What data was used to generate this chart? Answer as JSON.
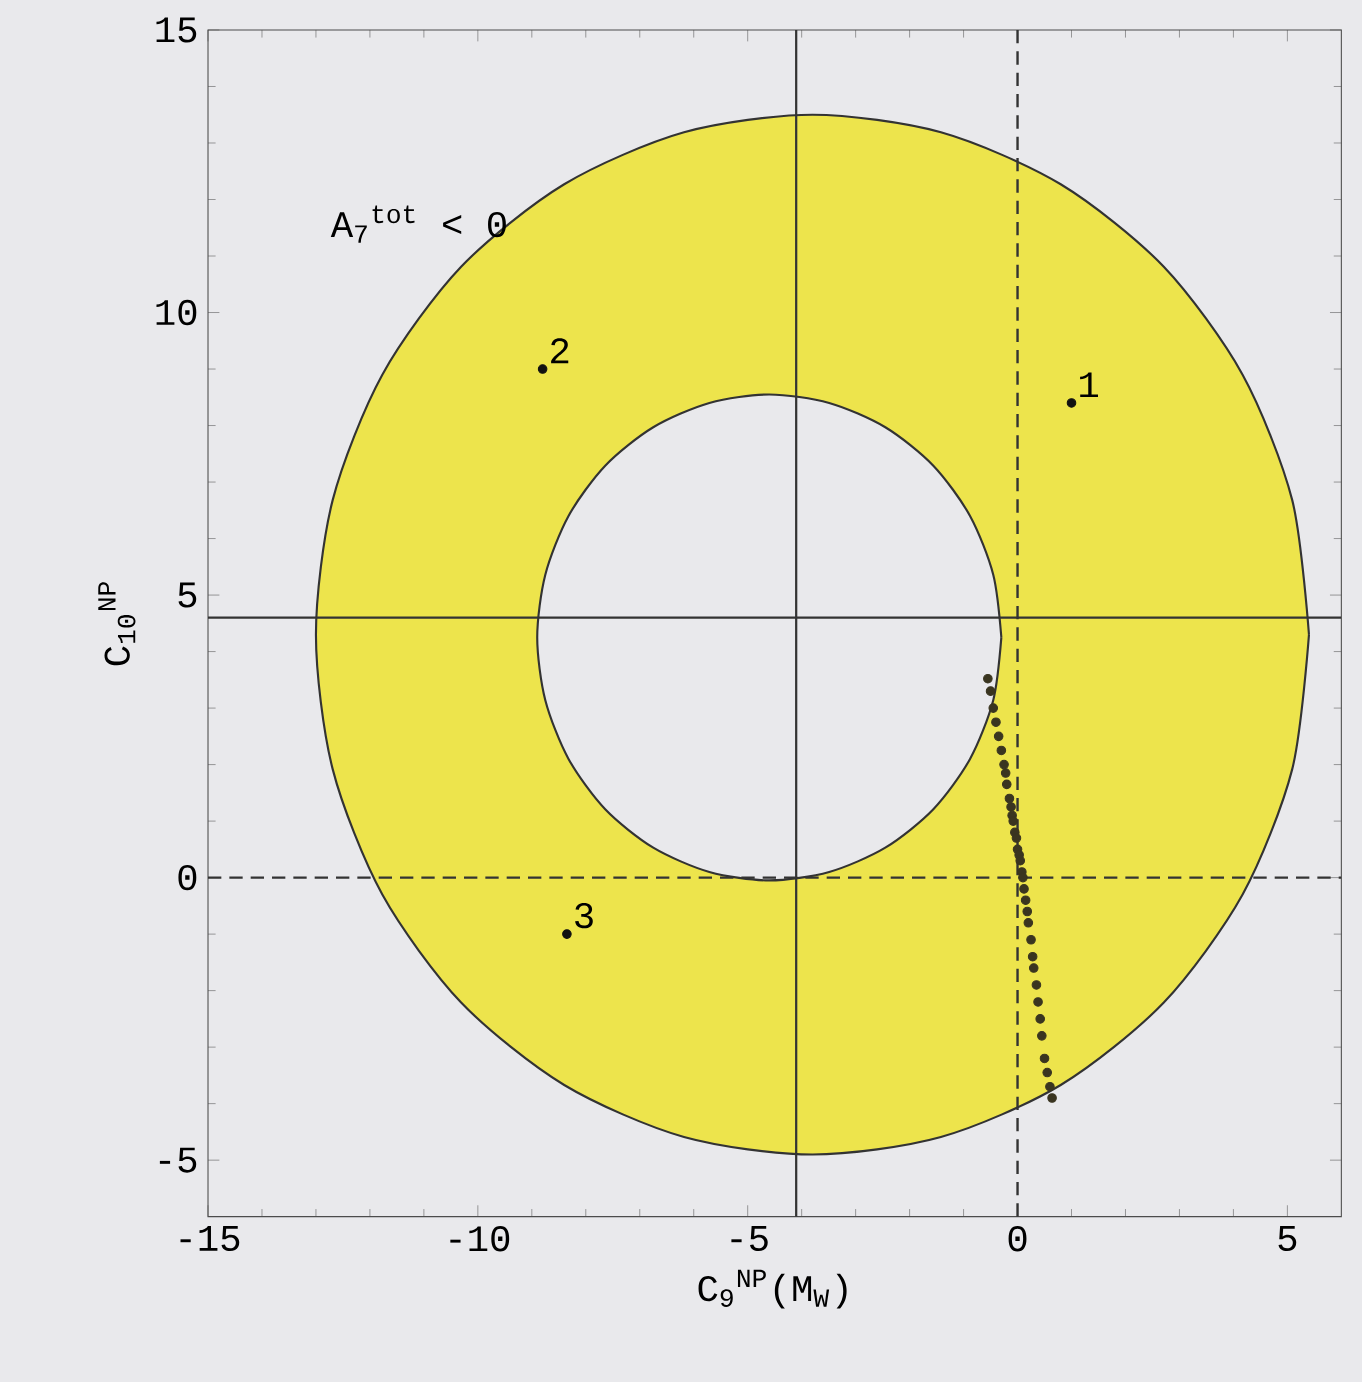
{
  "chart_data": {
    "type": "scatter",
    "xlabel": "C$_{9}$$^{NP}$(M$_{W}$)",
    "ylabel": "C$_{10}$$^{NP}$",
    "xlim": [
      -15,
      6
    ],
    "ylim": [
      -6,
      15
    ],
    "xticks": [
      -15,
      -10,
      -5,
      0,
      5
    ],
    "yticks": [
      -5,
      0,
      5,
      10,
      15
    ],
    "series": [
      {
        "type": "area",
        "color": "#ede44c",
        "x": [
          5.4,
          5.09,
          4.17,
          2.71,
          0.8,
          -1.42,
          -3.8,
          -6.18,
          -8.4,
          -10.31,
          -11.77,
          -12.69,
          -13.0,
          -12.69,
          -11.77,
          -10.31,
          -8.4,
          -6.18,
          -3.8,
          -1.42,
          0.8,
          2.71,
          4.17,
          5.09
        ],
        "values": [
          4.3,
          6.68,
          8.9,
          10.81,
          12.27,
          13.19,
          13.5,
          13.19,
          12.27,
          10.81,
          8.9,
          6.68,
          4.3,
          1.92,
          -0.3,
          -2.21,
          -3.67,
          -4.59,
          -4.9,
          -4.59,
          -3.67,
          -2.21,
          -0.3,
          1.92
        ]
      },
      {
        "type": "area",
        "color": "#e9e9ec",
        "x": [
          -0.3,
          -0.45,
          -0.88,
          -1.56,
          -2.45,
          -3.49,
          -4.6,
          -5.71,
          -6.75,
          -7.64,
          -8.32,
          -8.75,
          -8.9,
          -8.75,
          -8.32,
          -7.64,
          -6.75,
          -5.71,
          -4.6,
          -3.49,
          -2.45,
          -1.56,
          -0.88,
          -0.45
        ],
        "values": [
          4.25,
          5.36,
          6.4,
          7.29,
          7.97,
          8.4,
          8.55,
          8.4,
          7.97,
          7.29,
          6.4,
          5.36,
          4.25,
          3.14,
          2.1,
          1.21,
          0.53,
          0.1,
          -0.05,
          0.1,
          0.53,
          1.21,
          2.1,
          3.14
        ]
      },
      {
        "type": "scatter",
        "color": "#3a3520",
        "marker": "circle",
        "x": [
          -0.55,
          -0.5,
          -0.45,
          -0.4,
          -0.35,
          -0.3,
          -0.25,
          -0.22,
          -0.2,
          -0.15,
          -0.12,
          -0.1,
          -0.08,
          -0.05,
          -0.02,
          0.0,
          0.03,
          0.05,
          0.08,
          0.1,
          0.12,
          0.15,
          0.18,
          0.2,
          0.25,
          0.28,
          0.3,
          0.35,
          0.38,
          0.42,
          0.45,
          0.5,
          0.55,
          0.6,
          0.64
        ],
        "values": [
          3.52,
          3.3,
          3.0,
          2.75,
          2.5,
          2.25,
          2.0,
          1.85,
          1.65,
          1.4,
          1.25,
          1.1,
          1.0,
          0.8,
          0.7,
          0.5,
          0.4,
          0.3,
          0.1,
          0.0,
          -0.2,
          -0.4,
          -0.6,
          -0.8,
          -1.1,
          -1.4,
          -1.6,
          -1.9,
          -2.2,
          -2.5,
          -2.8,
          -3.2,
          -3.45,
          -3.7,
          -3.9
        ]
      },
      {
        "type": "scatter",
        "color": "#111111",
        "marker": "circle",
        "x": [
          1.0,
          -8.8,
          -8.35
        ],
        "values": [
          8.4,
          9.0,
          -1.0
        ]
      }
    ],
    "ref_lines": [
      {
        "axis": "x",
        "value": 0,
        "line_style": "dashed"
      },
      {
        "axis": "y",
        "value": 0,
        "line_style": "dashed"
      },
      {
        "axis": "x",
        "value": -4.1,
        "line_style": "solid"
      },
      {
        "axis": "y",
        "value": 4.6,
        "line_style": "solid"
      }
    ],
    "annotations": [
      "A$_{7}$$^{tot}$ < 0",
      {
        "text": "1",
        "x": 1.0,
        "y": 8.4
      },
      {
        "text": "2",
        "x": -8.8,
        "y": 9.0
      },
      {
        "text": "3",
        "x": -8.35,
        "y": -1.0
      }
    ]
  }
}
